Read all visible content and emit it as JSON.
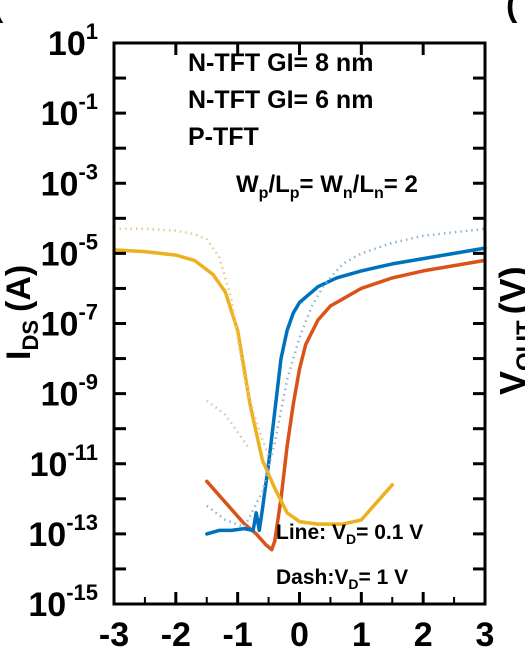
{
  "panel_labels": [
    "(",
    "("
  ],
  "chart_data": {
    "type": "line",
    "xlabel": "",
    "ylabel": "I",
    "ylabel_sub": "DS",
    "ylabel_unit": "(A)",
    "right_axis_label": "V",
    "right_axis_label_sub": "OUT",
    "right_axis_label_unit": "(V)",
    "xlim": [
      -3,
      3
    ],
    "ylim_log10": [
      -15,
      1
    ],
    "y_scale": "log",
    "x_ticks": [
      {
        "value": -3,
        "label": "-3"
      },
      {
        "value": -2,
        "label": "-2"
      },
      {
        "value": -1,
        "label": "-1"
      },
      {
        "value": 0,
        "label": "0"
      },
      {
        "value": 1,
        "label": "1"
      },
      {
        "value": 2,
        "label": "2"
      },
      {
        "value": 3,
        "label": "3"
      }
    ],
    "y_ticks": [
      {
        "exp": 1,
        "base": "10",
        "sup": "1"
      },
      {
        "exp": -1,
        "base": "10",
        "sup": "-1"
      },
      {
        "exp": -3,
        "base": "10",
        "sup": "-3"
      },
      {
        "exp": -5,
        "base": "10",
        "sup": "-5"
      },
      {
        "exp": -7,
        "base": "10",
        "sup": "-7"
      },
      {
        "exp": -9,
        "base": "10",
        "sup": "-9"
      },
      {
        "exp": -11,
        "base": "10",
        "sup": "-11"
      },
      {
        "exp": -13,
        "base": "10",
        "sup": "-13"
      },
      {
        "exp": -15,
        "base": "10",
        "sup": "-15"
      }
    ],
    "legend": [
      "N-TFT GI= 8 nm",
      "N-TFT GI= 6 nm",
      "P-TFT"
    ],
    "annotation_ratio": {
      "a": "W",
      "a_sub": "p",
      "b": "/L",
      "b_sub": "p",
      "c": "= W",
      "c_sub": "n",
      "d": "/L",
      "d_sub": "n",
      "e": "= 2"
    },
    "annotation_line": {
      "text": "Line: V",
      "sub": "D",
      "rest": "= 0.1 V"
    },
    "annotation_dash": {
      "text": "Dash:V",
      "sub": "D",
      "rest": "= 1 V"
    },
    "series": [
      {
        "name": "N-TFT GI= 8 nm",
        "color": "#d95319",
        "style": "solid",
        "points": [
          [
            -1.5,
            -11.5
          ],
          [
            -1.3,
            -11.9
          ],
          [
            -1.1,
            -12.3
          ],
          [
            -0.9,
            -12.7
          ],
          [
            -0.7,
            -13.0
          ],
          [
            -0.55,
            -13.3
          ],
          [
            -0.45,
            -13.45
          ],
          [
            -0.4,
            -13.2
          ],
          [
            -0.3,
            -12.0
          ],
          [
            -0.2,
            -10.5
          ],
          [
            -0.1,
            -9.3
          ],
          [
            0.0,
            -8.3
          ],
          [
            0.1,
            -7.6
          ],
          [
            0.3,
            -6.9
          ],
          [
            0.5,
            -6.5
          ],
          [
            1.0,
            -6.0
          ],
          [
            1.5,
            -5.7
          ],
          [
            2.0,
            -5.5
          ],
          [
            2.5,
            -5.35
          ],
          [
            3.0,
            -5.2
          ]
        ]
      },
      {
        "name": "N-TFT GI= 6 nm",
        "color": "#0072bd",
        "style": "solid",
        "points": [
          [
            -1.5,
            -13.0
          ],
          [
            -1.3,
            -12.9
          ],
          [
            -1.1,
            -12.9
          ],
          [
            -0.9,
            -12.85
          ],
          [
            -0.75,
            -12.9
          ],
          [
            -0.7,
            -12.4
          ],
          [
            -0.65,
            -12.9
          ],
          [
            -0.6,
            -12.3
          ],
          [
            -0.5,
            -11.0
          ],
          [
            -0.4,
            -9.5
          ],
          [
            -0.3,
            -8.0
          ],
          [
            -0.2,
            -7.2
          ],
          [
            -0.1,
            -6.7
          ],
          [
            0.0,
            -6.4
          ],
          [
            0.3,
            -5.95
          ],
          [
            0.6,
            -5.7
          ],
          [
            1.0,
            -5.5
          ],
          [
            1.5,
            -5.3
          ],
          [
            2.0,
            -5.15
          ],
          [
            2.5,
            -5.0
          ],
          [
            3.0,
            -4.85
          ]
        ]
      },
      {
        "name": "P-TFT",
        "color": "#edb120",
        "style": "solid",
        "points": [
          [
            -3.0,
            -4.9
          ],
          [
            -2.5,
            -4.95
          ],
          [
            -2.0,
            -5.05
          ],
          [
            -1.7,
            -5.2
          ],
          [
            -1.4,
            -5.6
          ],
          [
            -1.2,
            -6.1
          ],
          [
            -1.0,
            -7.2
          ],
          [
            -0.8,
            -9.3
          ],
          [
            -0.6,
            -10.9
          ],
          [
            -0.4,
            -11.7
          ],
          [
            -0.2,
            -12.4
          ],
          [
            0.0,
            -12.65
          ],
          [
            0.3,
            -12.72
          ],
          [
            0.7,
            -12.72
          ],
          [
            1.0,
            -12.6
          ],
          [
            1.2,
            -12.2
          ],
          [
            1.3,
            -12.0
          ],
          [
            1.5,
            -11.6
          ]
        ]
      },
      {
        "name": "",
        "color": "#8fb4d2",
        "style": "dotted",
        "points": [
          [
            -1.5,
            -12.2
          ],
          [
            -1.2,
            -12.6
          ],
          [
            -0.9,
            -12.8
          ],
          [
            -0.8,
            -12.5
          ],
          [
            -0.6,
            -11.8
          ],
          [
            -0.4,
            -10.4
          ],
          [
            -0.2,
            -8.6
          ],
          [
            0.0,
            -7.4
          ],
          [
            0.2,
            -6.5
          ],
          [
            0.4,
            -5.9
          ],
          [
            0.7,
            -5.3
          ],
          [
            1.0,
            -5.0
          ],
          [
            1.5,
            -4.7
          ],
          [
            2.0,
            -4.5
          ],
          [
            2.5,
            -4.4
          ],
          [
            3.0,
            -4.3
          ]
        ]
      },
      {
        "name": "",
        "color": "#e6c98a",
        "style": "dotted",
        "points": [
          [
            -3.0,
            -4.3
          ],
          [
            -2.5,
            -4.3
          ],
          [
            -2.0,
            -4.35
          ],
          [
            -1.7,
            -4.45
          ],
          [
            -1.5,
            -4.6
          ],
          [
            -1.3,
            -5.1
          ],
          [
            -1.1,
            -6.3
          ],
          [
            -0.9,
            -8.5
          ],
          [
            -0.7,
            -9.8
          ],
          [
            -0.5,
            -10.8
          ]
        ]
      },
      {
        "name": "",
        "color": "#c9c9c9",
        "style": "dotted",
        "points": [
          [
            -1.5,
            -9.2
          ],
          [
            -1.2,
            -9.6
          ],
          [
            -1.0,
            -10.1
          ],
          [
            -0.8,
            -10.6
          ]
        ]
      }
    ]
  }
}
